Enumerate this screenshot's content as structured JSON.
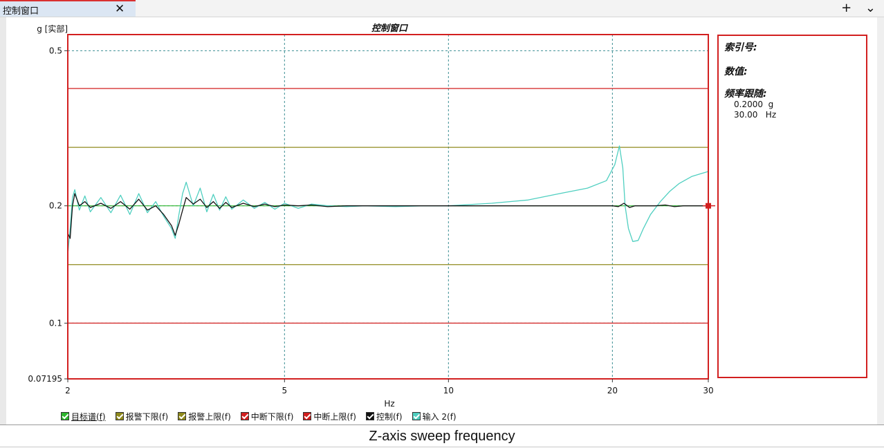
{
  "window": {
    "tab_title": "控制窗口",
    "close_glyph": "✕",
    "add_glyph": "+",
    "menu_glyph": "⌄"
  },
  "chart_data": {
    "type": "line",
    "title": "控制窗口",
    "ylabel": "g [实部]",
    "xlabel": "Hz",
    "x_scale": "log",
    "y_scale": "log",
    "xlim": [
      2,
      30
    ],
    "ylim": [
      0.07195,
      0.55
    ],
    "x_ticks": [
      2,
      5,
      10,
      20,
      30
    ],
    "y_ticks": [
      0.5,
      0.2,
      0.1,
      0.07195
    ],
    "grid": true,
    "reference_lines": [
      {
        "name": "目标谱(f)",
        "value": 0.2,
        "color": "#2db52d"
      },
      {
        "name": "报警下限(f)",
        "value": 0.1413,
        "color": "#8f8a1c"
      },
      {
        "name": "报警上限(f)",
        "value": 0.2825,
        "color": "#8f8a1c"
      },
      {
        "name": "中断下限(f)",
        "value": 0.1,
        "color": "#d21f1f"
      },
      {
        "name": "中断上限(f)",
        "value": 0.4,
        "color": "#d21f1f"
      }
    ],
    "series": [
      {
        "name": "控制(f)",
        "color": "#111111",
        "x": [
          2.0,
          2.02,
          2.04,
          2.06,
          2.1,
          2.15,
          2.2,
          2.3,
          2.4,
          2.5,
          2.6,
          2.7,
          2.8,
          2.9,
          3.0,
          3.1,
          3.15,
          3.2,
          3.25,
          3.3,
          3.4,
          3.5,
          3.6,
          3.7,
          3.8,
          3.9,
          4.0,
          4.2,
          4.4,
          4.6,
          4.8,
          5.0,
          5.3,
          5.6,
          6.0,
          6.5,
          7,
          8,
          9,
          10,
          12,
          14,
          16,
          18,
          20,
          20.5,
          21,
          21.5,
          22,
          23,
          24,
          25,
          26,
          27,
          28,
          29,
          30
        ],
        "values": [
          0.17,
          0.165,
          0.2,
          0.215,
          0.2,
          0.205,
          0.198,
          0.203,
          0.197,
          0.205,
          0.196,
          0.208,
          0.195,
          0.2,
          0.19,
          0.178,
          0.168,
          0.18,
          0.195,
          0.21,
          0.202,
          0.208,
          0.198,
          0.205,
          0.197,
          0.204,
          0.198,
          0.203,
          0.199,
          0.202,
          0.199,
          0.201,
          0.2,
          0.201,
          0.199,
          0.2,
          0.2,
          0.2,
          0.2,
          0.2,
          0.2,
          0.2,
          0.2,
          0.2,
          0.2,
          0.199,
          0.203,
          0.198,
          0.2,
          0.2,
          0.2,
          0.201,
          0.199,
          0.2,
          0.2,
          0.2,
          0.2
        ]
      },
      {
        "name": "输入 2(f)",
        "color": "#4fcfc0",
        "x": [
          2.0,
          2.02,
          2.04,
          2.06,
          2.1,
          2.15,
          2.2,
          2.3,
          2.4,
          2.5,
          2.6,
          2.7,
          2.8,
          2.9,
          3.0,
          3.1,
          3.15,
          3.2,
          3.25,
          3.3,
          3.4,
          3.5,
          3.6,
          3.7,
          3.8,
          3.9,
          4.0,
          4.2,
          4.4,
          4.6,
          4.8,
          5.0,
          5.3,
          5.6,
          6.0,
          6.5,
          7,
          8,
          9,
          10,
          12,
          14,
          16,
          18,
          19.5,
          20.2,
          20.6,
          20.9,
          21.1,
          21.4,
          21.8,
          22.3,
          22.8,
          23.5,
          24.5,
          25.5,
          26.5,
          28,
          30
        ],
        "values": [
          0.15,
          0.175,
          0.21,
          0.22,
          0.195,
          0.212,
          0.193,
          0.21,
          0.192,
          0.213,
          0.19,
          0.215,
          0.192,
          0.205,
          0.188,
          0.175,
          0.165,
          0.19,
          0.215,
          0.23,
          0.2,
          0.222,
          0.193,
          0.214,
          0.195,
          0.211,
          0.196,
          0.207,
          0.197,
          0.204,
          0.196,
          0.203,
          0.197,
          0.202,
          0.2,
          0.199,
          0.2,
          0.199,
          0.2,
          0.2,
          0.203,
          0.207,
          0.215,
          0.222,
          0.232,
          0.255,
          0.285,
          0.25,
          0.2,
          0.175,
          0.162,
          0.163,
          0.175,
          0.19,
          0.205,
          0.218,
          0.228,
          0.238,
          0.245
        ]
      }
    ],
    "cursor": {
      "x": 30,
      "y": 0.2
    }
  },
  "info_panel": {
    "index_label": "索引号:",
    "value_label": "数值:",
    "freq_track_label": "频率跟随:",
    "amplitude": "0.2000  g",
    "frequency": "30.00   Hz"
  },
  "legend": [
    {
      "label": "目标谱(f)",
      "color": "#2db52d"
    },
    {
      "label": "报警下限(f)",
      "color": "#8f8a1c"
    },
    {
      "label": "报警上限(f)",
      "color": "#8f8a1c"
    },
    {
      "label": "中断下限(f)",
      "color": "#d21f1f"
    },
    {
      "label": "中断上限(f)",
      "color": "#d21f1f"
    },
    {
      "label": "控制(f)",
      "color": "#111111"
    },
    {
      "label": "输入 2(f)",
      "color": "#4fcfc0"
    }
  ],
  "caption": "Z-axis sweep frequency"
}
